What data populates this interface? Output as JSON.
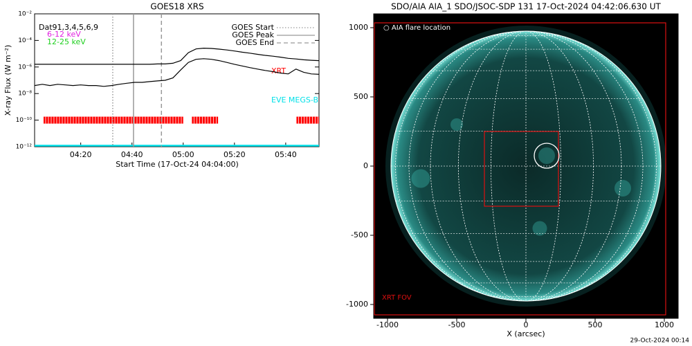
{
  "chart_data": [
    {
      "type": "line",
      "title": "GOES18 XRS",
      "x_label": "Start Time (17-Oct-24 04:04:00)",
      "y_label": "X-ray Flux (W m⁻²)",
      "legend_title": "Dat91,3,4,5,6,9",
      "log_y": true,
      "xlim": [
        242,
        353
      ],
      "xticks": [
        {
          "value": 260,
          "label": "04:20"
        },
        {
          "value": 280,
          "label": "04:40"
        },
        {
          "value": 300,
          "label": "05:00"
        },
        {
          "value": 320,
          "label": "05:20"
        },
        {
          "value": 340,
          "label": "05:40"
        }
      ],
      "ylim": [
        1e-12,
        0.01
      ],
      "yticks": [
        {
          "value": 1e-12,
          "label": "10⁻¹²"
        },
        {
          "value": 1e-10,
          "label": "10⁻¹⁰"
        },
        {
          "value": 1e-08,
          "label": "10⁻⁸"
        },
        {
          "value": 1e-06,
          "label": "10⁻⁶"
        },
        {
          "value": 0.0001,
          "label": "10⁻⁴"
        },
        {
          "value": 0.01,
          "label": "10⁻²"
        }
      ],
      "x": [
        242,
        245,
        248,
        251,
        254,
        257,
        260,
        263,
        266,
        269,
        272,
        275,
        278,
        281,
        284,
        287,
        290,
        293,
        296,
        299,
        302,
        305,
        308,
        311,
        314,
        317,
        320,
        323,
        326,
        329,
        332,
        335,
        338,
        341,
        344,
        347,
        350,
        353
      ],
      "series": [
        {
          "name": "6-12 keV",
          "color": "#000000",
          "legend_color": "#e020e0",
          "values": [
            1.6e-06,
            1.6e-06,
            1.6e-06,
            1.6e-06,
            1.6e-06,
            1.6e-06,
            1.6e-06,
            1.6e-06,
            1.6e-06,
            1.6e-06,
            1.6e-06,
            1.6e-06,
            1.6e-06,
            1.6e-06,
            1.6e-06,
            1.6e-06,
            1.7e-06,
            1.7e-06,
            1.9e-06,
            3e-06,
            1.2e-05,
            2.3e-05,
            2.6e-05,
            2.5e-05,
            2.2e-05,
            1.9e-05,
            1.6e-05,
            1.3e-05,
            1.1e-05,
            9e-06,
            7.5e-06,
            6.5e-06,
            5.5e-06,
            4.5e-06,
            4e-06,
            3.5e-06,
            3.2e-06,
            3e-06
          ]
        },
        {
          "name": "12-25 keV",
          "color": "#000000",
          "legend_color": "#20d020",
          "values": [
            4e-08,
            5e-08,
            4e-08,
            5e-08,
            4.5e-08,
            4e-08,
            4.5e-08,
            4e-08,
            4e-08,
            3.5e-08,
            4e-08,
            5e-08,
            6e-08,
            7e-08,
            7e-08,
            8e-08,
            9e-08,
            1e-07,
            1.5e-07,
            6e-07,
            2.2e-06,
            3.8e-06,
            4.2e-06,
            3.8e-06,
            3e-06,
            2.2e-06,
            1.6e-06,
            1.2e-06,
            9e-07,
            7e-07,
            5.5e-07,
            4.5e-07,
            3.5e-07,
            3e-07,
            7e-07,
            4e-07,
            3e-07,
            2.8e-07
          ]
        }
      ],
      "markers": [
        {
          "name": "GOES Start",
          "x": 272.5,
          "style": "dotted"
        },
        {
          "name": "GOES Peak",
          "x": 280.6,
          "style": "solid"
        },
        {
          "name": "GOES End",
          "x": 291.5,
          "style": "dashed"
        }
      ],
      "xrt": {
        "label": "XRT",
        "color": "#ff0000",
        "level": 1e-10,
        "intervals": [
          [
            245.5,
            300
          ],
          [
            303.4,
            313.6
          ],
          [
            344.2,
            353
          ]
        ]
      },
      "eve": {
        "label": "EVE MEGS-B",
        "color": "#00e0e8",
        "level": 1e-12
      }
    },
    {
      "type": "image",
      "title": "SDO/AIA AIA_1 SDO/JSOC-SDP 131 17-Oct-2024 04:42:06.630 UT",
      "x_label": "X (arcsec)",
      "xlim": [
        -1100,
        1100
      ],
      "ylim": [
        -1100,
        1100
      ],
      "xticks": [
        -1000,
        -500,
        0,
        500,
        1000
      ],
      "yticks": [
        -1000,
        -500,
        0,
        500,
        1000
      ],
      "flare_label": "○ AIA flare location",
      "flare": {
        "x": 150,
        "y": 75,
        "r": 90
      },
      "fov_label": "XRT FOV",
      "fov": {
        "x": [
          -1095,
          1010
        ],
        "y": [
          -1075,
          1035
        ],
        "color": "#dd1010"
      },
      "inner_box": {
        "x": [
          -300,
          235
        ],
        "y": [
          -290,
          250
        ],
        "color": "#dd1010"
      },
      "footer": "29-Oct-2024 00:14"
    }
  ]
}
